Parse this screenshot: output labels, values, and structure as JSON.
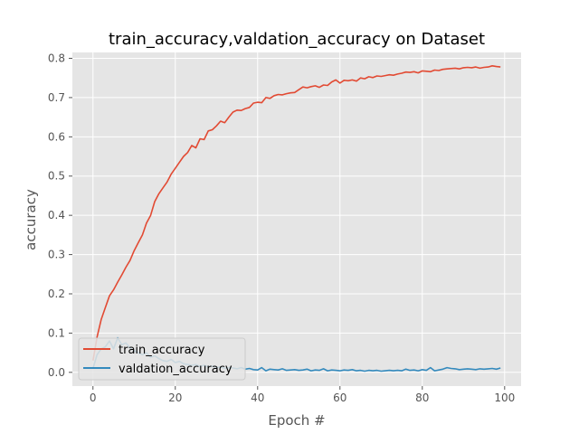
{
  "chart_data": {
    "type": "line",
    "title": "train_accuracy,valdation_accuracy on Dataset",
    "xlabel": "Epoch #",
    "ylabel": "accuracy",
    "xlim": [
      -5,
      104
    ],
    "ylim": [
      -0.035,
      0.815
    ],
    "x_ticks": [
      0,
      20,
      40,
      60,
      80,
      100
    ],
    "y_ticks": [
      0.0,
      0.1,
      0.2,
      0.3,
      0.4,
      0.5,
      0.6,
      0.7,
      0.8
    ],
    "x_tick_labels": [
      "0",
      "20",
      "40",
      "60",
      "80",
      "100"
    ],
    "y_tick_labels": [
      "0.0",
      "0.1",
      "0.2",
      "0.3",
      "0.4",
      "0.5",
      "0.6",
      "0.7",
      "0.8"
    ],
    "grid": true,
    "legend_position": "lower-left",
    "background_color": "#e5e5e5",
    "grid_color": "#ffffff",
    "series": [
      {
        "name": "train_accuracy",
        "color": "#e24a33",
        "x": [
          0,
          1,
          2,
          3,
          4,
          5,
          6,
          7,
          8,
          9,
          10,
          11,
          12,
          13,
          14,
          15,
          16,
          17,
          18,
          19,
          20,
          21,
          22,
          23,
          24,
          25,
          26,
          27,
          28,
          29,
          30,
          31,
          32,
          33,
          34,
          35,
          36,
          37,
          38,
          39,
          40,
          41,
          42,
          43,
          44,
          45,
          46,
          47,
          48,
          49,
          50,
          51,
          52,
          53,
          54,
          55,
          56,
          57,
          58,
          59,
          60,
          61,
          62,
          63,
          64,
          65,
          66,
          67,
          68,
          69,
          70,
          71,
          72,
          73,
          74,
          75,
          76,
          77,
          78,
          79,
          80,
          81,
          82,
          83,
          84,
          85,
          86,
          87,
          88,
          89,
          90,
          91,
          92,
          93,
          94,
          95,
          96,
          97,
          98,
          99
        ],
        "values": [
          0.03,
          0.09,
          0.135,
          0.165,
          0.195,
          0.21,
          0.23,
          0.248,
          0.268,
          0.285,
          0.31,
          0.33,
          0.35,
          0.38,
          0.4,
          0.435,
          0.455,
          0.47,
          0.485,
          0.505,
          0.52,
          0.535,
          0.55,
          0.56,
          0.578,
          0.572,
          0.595,
          0.593,
          0.615,
          0.618,
          0.628,
          0.64,
          0.636,
          0.65,
          0.663,
          0.668,
          0.667,
          0.672,
          0.675,
          0.686,
          0.688,
          0.687,
          0.7,
          0.698,
          0.705,
          0.708,
          0.707,
          0.71,
          0.712,
          0.713,
          0.72,
          0.727,
          0.725,
          0.728,
          0.73,
          0.726,
          0.732,
          0.731,
          0.74,
          0.745,
          0.737,
          0.744,
          0.743,
          0.745,
          0.742,
          0.75,
          0.748,
          0.753,
          0.751,
          0.755,
          0.754,
          0.756,
          0.758,
          0.757,
          0.76,
          0.762,
          0.765,
          0.764,
          0.766,
          0.763,
          0.768,
          0.767,
          0.766,
          0.77,
          0.769,
          0.772,
          0.773,
          0.774,
          0.775,
          0.773,
          0.776,
          0.777,
          0.776,
          0.778,
          0.775,
          0.777,
          0.778,
          0.781,
          0.779,
          0.778
        ]
      },
      {
        "name": "valdation_accuracy",
        "color": "#348abd",
        "x": [
          0,
          1,
          2,
          3,
          4,
          5,
          6,
          7,
          8,
          9,
          10,
          11,
          12,
          13,
          14,
          15,
          16,
          17,
          18,
          19,
          20,
          21,
          22,
          23,
          24,
          25,
          26,
          27,
          28,
          29,
          30,
          31,
          32,
          33,
          34,
          35,
          36,
          37,
          38,
          39,
          40,
          41,
          42,
          43,
          44,
          45,
          46,
          47,
          48,
          49,
          50,
          51,
          52,
          53,
          54,
          55,
          56,
          57,
          58,
          59,
          60,
          61,
          62,
          63,
          64,
          65,
          66,
          67,
          68,
          69,
          70,
          71,
          72,
          73,
          74,
          75,
          76,
          77,
          78,
          79,
          80,
          81,
          82,
          83,
          84,
          85,
          86,
          87,
          88,
          89,
          90,
          91,
          92,
          93,
          94,
          95,
          96,
          97,
          98,
          99
        ],
        "values": [
          0.01,
          0.045,
          0.06,
          0.065,
          0.08,
          0.06,
          0.088,
          0.07,
          0.075,
          0.062,
          0.055,
          0.05,
          0.045,
          0.05,
          0.038,
          0.042,
          0.035,
          0.03,
          0.028,
          0.033,
          0.025,
          0.028,
          0.022,
          0.02,
          0.018,
          0.02,
          0.015,
          0.018,
          0.014,
          0.016,
          0.012,
          0.014,
          0.01,
          0.012,
          0.011,
          0.009,
          0.012,
          0.008,
          0.01,
          0.007,
          0.006,
          0.012,
          0.004,
          0.008,
          0.007,
          0.006,
          0.009,
          0.005,
          0.006,
          0.007,
          0.005,
          0.006,
          0.008,
          0.004,
          0.006,
          0.005,
          0.009,
          0.004,
          0.006,
          0.005,
          0.004,
          0.006,
          0.005,
          0.007,
          0.004,
          0.005,
          0.003,
          0.005,
          0.004,
          0.005,
          0.003,
          0.004,
          0.005,
          0.004,
          0.005,
          0.004,
          0.008,
          0.005,
          0.006,
          0.004,
          0.007,
          0.005,
          0.012,
          0.004,
          0.006,
          0.008,
          0.012,
          0.01,
          0.009,
          0.007,
          0.008,
          0.009,
          0.008,
          0.007,
          0.009,
          0.008,
          0.009,
          0.01,
          0.008,
          0.011
        ]
      }
    ]
  }
}
